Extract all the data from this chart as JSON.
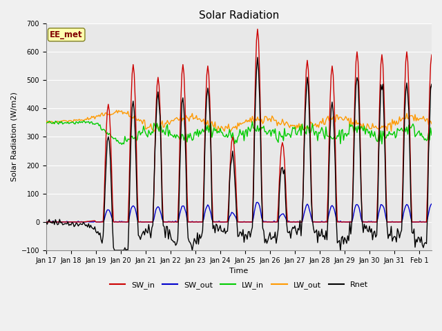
{
  "title": "Solar Radiation",
  "ylabel": "Solar Radiation (W/m2)",
  "xlabel": "Time",
  "ylim": [
    -100,
    700
  ],
  "xlim_days": [
    0,
    15.5
  ],
  "xtick_labels": [
    "Jan 17",
    "Jan 18",
    "Jan 19",
    "Jan 20",
    "Jan 21",
    "Jan 22",
    "Jan 23",
    "Jan 24",
    "Jan 25",
    "Jan 26",
    "Jan 27",
    "Jan 28",
    "Jan 29",
    "Jan 30",
    "Jan 31",
    "Feb 1"
  ],
  "plot_bg_color": "#e8e8e8",
  "fig_bg_color": "#f0f0f0",
  "annotation_text": "EE_met",
  "annotation_bg": "#ffffb0",
  "annotation_border": "#808020",
  "colors": {
    "SW_in": "#cc0000",
    "SW_out": "#0000cc",
    "LW_in": "#00cc00",
    "LW_out": "#ff9900",
    "Rnet": "#000000"
  },
  "linewidth": 1.0,
  "title_fontsize": 11,
  "label_fontsize": 8,
  "tick_fontsize": 7,
  "legend_fontsize": 8
}
